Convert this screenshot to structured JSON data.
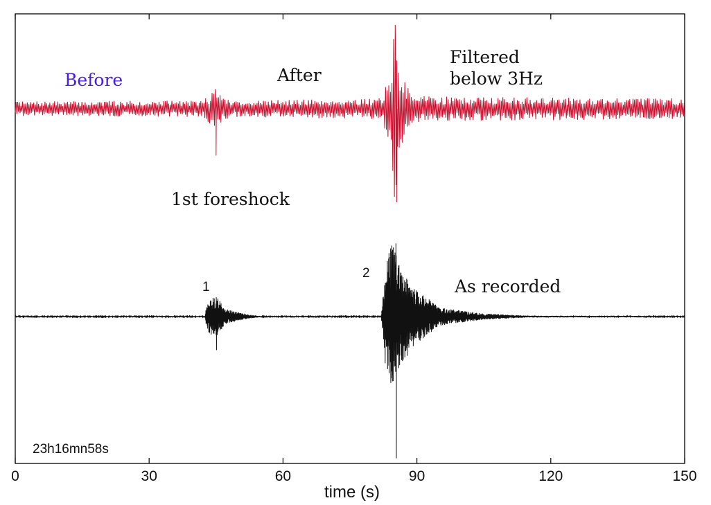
{
  "chart_data": {
    "type": "line",
    "xlabel": "time (s)",
    "ylabel": "",
    "xlim": [
      0,
      150
    ],
    "x_ticks": [
      0,
      30,
      60,
      90,
      120,
      150
    ],
    "x_tick_labels": [
      "0",
      "30",
      "60",
      "90",
      "120",
      "150"
    ],
    "grid": false,
    "corner_label": "23h16mn58s",
    "series": [
      {
        "key": "filtered",
        "color": "#c8102e",
        "envelope": [
          [
            0,
            0.07
          ],
          [
            42,
            0.08
          ],
          [
            44,
            0.16
          ],
          [
            45,
            0.22
          ],
          [
            46.5,
            0.12
          ],
          [
            49,
            0.08
          ],
          [
            82,
            0.1
          ],
          [
            84,
            0.35
          ],
          [
            85,
            0.9
          ],
          [
            86,
            0.45
          ],
          [
            88,
            0.2
          ],
          [
            92,
            0.12
          ],
          [
            150,
            0.1
          ]
        ],
        "spikes": [
          [
            45,
            -0.45
          ],
          [
            85.2,
            0.55
          ],
          [
            85.5,
            -0.9
          ]
        ]
      },
      {
        "key": "recorded",
        "color": "#111111",
        "envelope": [
          [
            0,
            0.004
          ],
          [
            42.5,
            0.004
          ],
          [
            43,
            0.1
          ],
          [
            45,
            0.14
          ],
          [
            47,
            0.05
          ],
          [
            52,
            0.015
          ],
          [
            55,
            0.004
          ],
          [
            82,
            0.004
          ],
          [
            83,
            0.35
          ],
          [
            84.5,
            0.5
          ],
          [
            86,
            0.35
          ],
          [
            89,
            0.2
          ],
          [
            95,
            0.06
          ],
          [
            105,
            0.02
          ],
          [
            115,
            0.006
          ],
          [
            150,
            0.004
          ]
        ],
        "spikes": [
          [
            45.1,
            -0.22
          ],
          [
            85.3,
            0.48
          ],
          [
            85.4,
            -0.93
          ]
        ]
      }
    ],
    "annotations": [
      {
        "key": "before",
        "text": "Before",
        "color": "#4a1de0",
        "x": 18
      },
      {
        "key": "after",
        "text": "After",
        "color": "#111111",
        "x": 64
      },
      {
        "key": "filtered_line1",
        "text": "Filtered",
        "color": "#111111",
        "x": 97
      },
      {
        "key": "filtered_line2",
        "text": "below  3Hz",
        "color": "#111111",
        "x": 97
      },
      {
        "key": "foreshock",
        "text": "1st  foreshock",
        "color": "#111111",
        "x": 35
      },
      {
        "key": "recorded",
        "text": "As  recorded",
        "color": "#111111",
        "x": 99
      }
    ],
    "event_labels": [
      {
        "text": "1",
        "x": 43.5
      },
      {
        "text": "2",
        "x": 79.5
      }
    ]
  }
}
